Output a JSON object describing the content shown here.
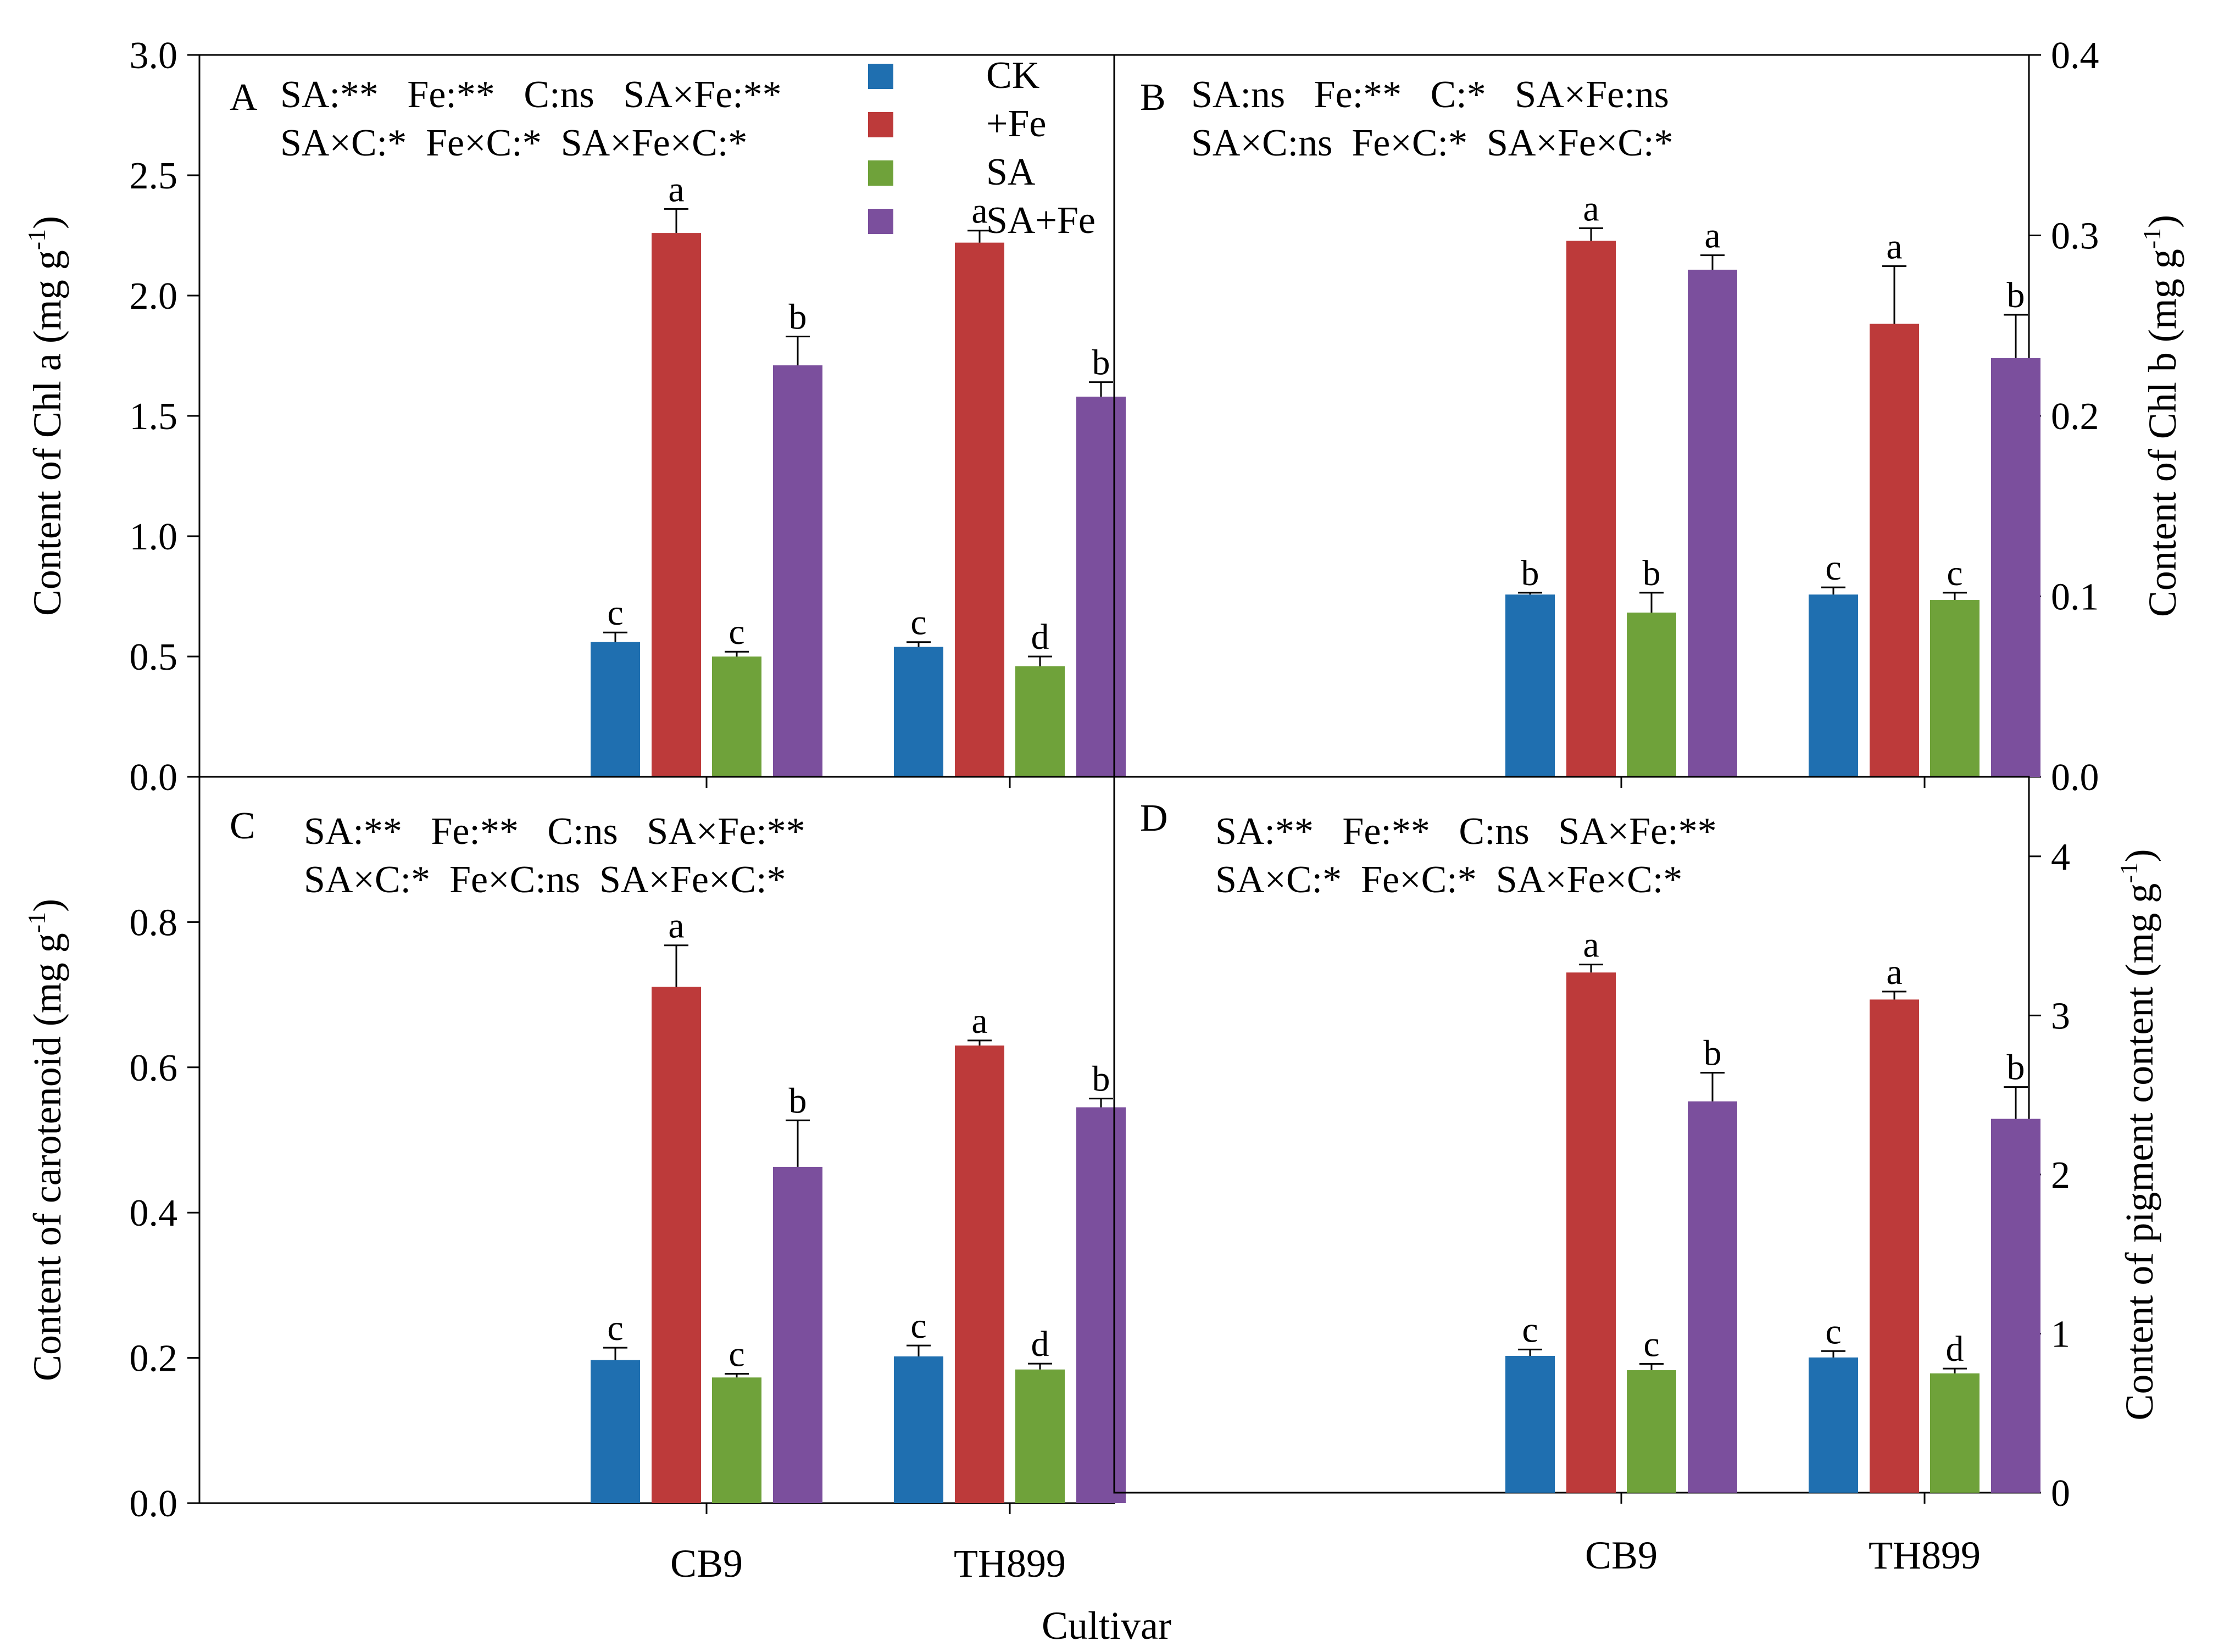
{
  "x_axis_title": "Cultivar",
  "legend": [
    {
      "label": "CK",
      "color": "#1f6fb0"
    },
    {
      "label": "+Fe",
      "color": "#bd3a3a"
    },
    {
      "label": "SA",
      "color": "#6fa23a"
    },
    {
      "label": "SA+Fe",
      "color": "#7b4f9d"
    }
  ],
  "colors": {
    "CK": "#1f6fb0",
    "+Fe": "#bd3a3a",
    "SA": "#6fa23a",
    "SA+Fe": "#7b4f9d"
  },
  "chart_data": [
    {
      "panel": "A",
      "type": "bar",
      "ylabel": "Content of Chl a (mg g",
      "ylabel_sup": "-1",
      "ylabel_close": ")",
      "axis_side": "left",
      "ylim": [
        0,
        3.0
      ],
      "ticks": [
        "0.0",
        "0.5",
        "1.0",
        "1.5",
        "2.0",
        "2.5",
        "3.0"
      ],
      "categories": [
        "CB9",
        "TH899"
      ],
      "series": [
        {
          "name": "CK",
          "values": [
            0.56,
            0.54
          ],
          "errors": [
            0.04,
            0.02
          ],
          "letters": [
            "c",
            "c"
          ]
        },
        {
          "name": "+Fe",
          "values": [
            2.26,
            2.22
          ],
          "errors": [
            0.1,
            0.05
          ],
          "letters": [
            "a",
            "a"
          ]
        },
        {
          "name": "SA",
          "values": [
            0.5,
            0.46
          ],
          "errors": [
            0.02,
            0.04
          ],
          "letters": [
            "c",
            "d"
          ]
        },
        {
          "name": "SA+Fe",
          "values": [
            1.71,
            1.58
          ],
          "errors": [
            0.12,
            0.06
          ],
          "letters": [
            "b",
            "b"
          ]
        }
      ],
      "stats": [
        "SA:**   Fe:**   C:ns   SA×Fe:**",
        "SA×C:*  Fe×C:*  SA×Fe×C:*"
      ]
    },
    {
      "panel": "B",
      "type": "bar",
      "ylabel": "Content of Chl b (mg g",
      "ylabel_sup": "-1",
      "ylabel_close": ")",
      "axis_side": "right",
      "ylim": [
        0,
        0.4
      ],
      "ticks": [
        "0.0",
        "0.1",
        "0.2",
        "0.3",
        "0.4"
      ],
      "categories": [
        "CB9",
        "TH899"
      ],
      "series": [
        {
          "name": "CK",
          "values": [
            0.101,
            0.101
          ],
          "errors": [
            0.001,
            0.004
          ],
          "letters": [
            "b",
            "c"
          ]
        },
        {
          "name": "+Fe",
          "values": [
            0.297,
            0.251
          ],
          "errors": [
            0.007,
            0.032
          ],
          "letters": [
            "a",
            "a"
          ]
        },
        {
          "name": "SA",
          "values": [
            0.091,
            0.098
          ],
          "errors": [
            0.011,
            0.004
          ],
          "letters": [
            "b",
            "c"
          ]
        },
        {
          "name": "SA+Fe",
          "values": [
            0.281,
            0.232
          ],
          "errors": [
            0.008,
            0.024
          ],
          "letters": [
            "a",
            "b"
          ]
        }
      ],
      "stats": [
        "SA:ns   Fe:**   C:*   SA×Fe:ns",
        "SA×C:ns  Fe×C:*  SA×Fe×C:*"
      ]
    },
    {
      "panel": "C",
      "type": "bar",
      "ylabel": "Content of carotenoid (mg g",
      "ylabel_sup": "-1",
      "ylabel_close": ")",
      "axis_side": "left",
      "ylim": [
        0,
        1.0
      ],
      "ticks": [
        "0.0",
        "0.2",
        "0.4",
        "0.6",
        "0.8"
      ],
      "categories": [
        "CB9",
        "TH899"
      ],
      "series": [
        {
          "name": "CK",
          "values": [
            0.197,
            0.202
          ],
          "errors": [
            0.017,
            0.015
          ],
          "letters": [
            "c",
            "c"
          ]
        },
        {
          "name": "+Fe",
          "values": [
            0.711,
            0.63
          ],
          "errors": [
            0.057,
            0.007
          ],
          "letters": [
            "a",
            "a"
          ]
        },
        {
          "name": "SA",
          "values": [
            0.173,
            0.184
          ],
          "errors": [
            0.005,
            0.008
          ],
          "letters": [
            "c",
            "d"
          ]
        },
        {
          "name": "SA+Fe",
          "values": [
            0.463,
            0.545
          ],
          "errors": [
            0.064,
            0.012
          ],
          "letters": [
            "b",
            "b"
          ]
        }
      ],
      "stats": [
        "SA:**   Fe:**   C:ns   SA×Fe:**",
        "SA×C:*  Fe×C:ns  SA×Fe×C:*"
      ]
    },
    {
      "panel": "D",
      "type": "bar",
      "ylabel": "Content of pigment content (mg g",
      "ylabel_sup": "-1",
      "ylabel_close": ")",
      "axis_side": "right",
      "ylim": [
        0,
        4.5
      ],
      "ticks": [
        "0",
        "1",
        "2",
        "3",
        "4"
      ],
      "categories": [
        "CB9",
        "TH899"
      ],
      "series": [
        {
          "name": "CK",
          "values": [
            0.86,
            0.85
          ],
          "errors": [
            0.04,
            0.04
          ],
          "letters": [
            "c",
            "c"
          ]
        },
        {
          "name": "+Fe",
          "values": [
            3.27,
            3.1
          ],
          "errors": [
            0.05,
            0.05
          ],
          "letters": [
            "a",
            "a"
          ]
        },
        {
          "name": "SA",
          "values": [
            0.77,
            0.75
          ],
          "errors": [
            0.04,
            0.03
          ],
          "letters": [
            "c",
            "d"
          ]
        },
        {
          "name": "SA+Fe",
          "values": [
            2.46,
            2.35
          ],
          "errors": [
            0.18,
            0.2
          ],
          "letters": [
            "b",
            "b"
          ]
        }
      ],
      "stats": [
        "SA:**   Fe:**   C:ns   SA×Fe:**",
        "SA×C:*  Fe×C:*  SA×Fe×C:*"
      ]
    }
  ]
}
